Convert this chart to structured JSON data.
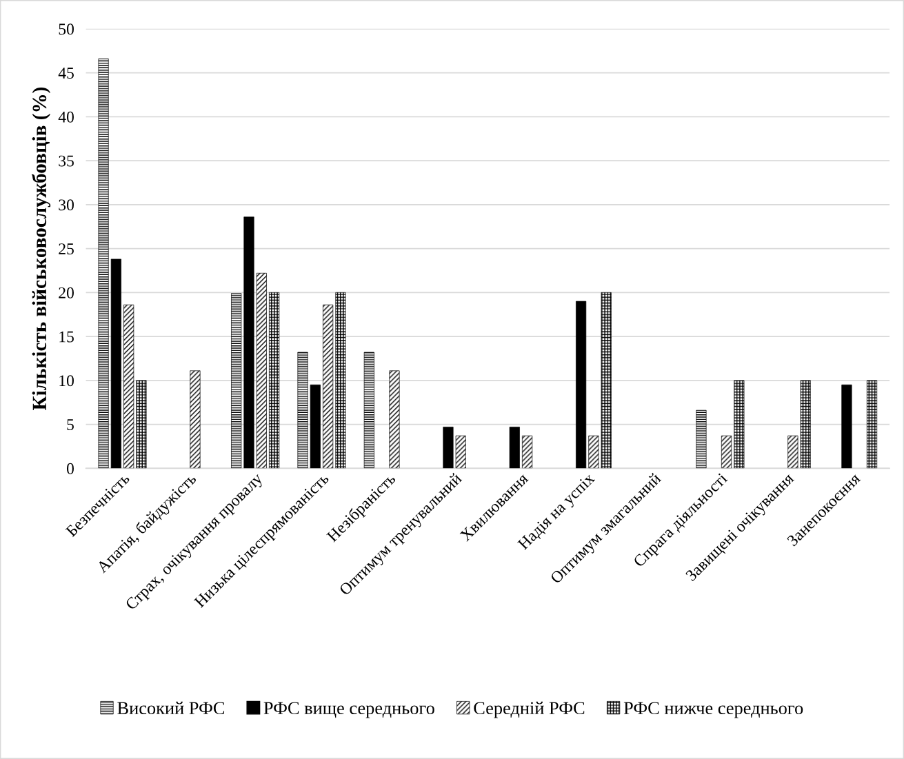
{
  "chart_data": {
    "type": "bar",
    "ylabel": "Кількість військовослужбовців (%)",
    "categories": [
      "Безпечність",
      "Апатія, байдужість",
      "Страх, очікування провалу",
      "Низька цілеспрямованість",
      "Незібраність",
      "Оптимум тренувальний",
      "Хвилювання",
      "Надія на успіх",
      "Оптимум змагальний",
      "Спрага діяльності",
      "Завищені очікування",
      "Занепокоєння"
    ],
    "series": [
      {
        "name": "Високий РФС",
        "color": "#000000",
        "values": [
          46.6,
          null,
          19.9,
          13.2,
          13.2,
          null,
          null,
          null,
          null,
          6.6,
          null,
          null
        ]
      },
      {
        "name": "РФС вище середнього",
        "color": "#000000",
        "values": [
          23.8,
          null,
          28.6,
          9.5,
          null,
          4.7,
          4.7,
          19.0,
          null,
          null,
          null,
          9.5
        ]
      },
      {
        "name": "Середній РФС",
        "color": "#000000",
        "values": [
          18.6,
          11.1,
          22.2,
          18.6,
          11.1,
          3.7,
          3.7,
          3.7,
          null,
          3.7,
          3.7,
          null
        ]
      },
      {
        "name": "РФС нижче середнього",
        "color": "#000000",
        "values": [
          10.0,
          null,
          20.0,
          20.0,
          null,
          null,
          null,
          20.0,
          null,
          10.0,
          10.0,
          10.0
        ]
      }
    ],
    "ylim": [
      0,
      50
    ],
    "yticks": [
      0,
      5,
      10,
      15,
      20,
      25,
      30,
      35,
      40,
      45,
      50
    ],
    "grid": "y",
    "legend": "bottom"
  }
}
